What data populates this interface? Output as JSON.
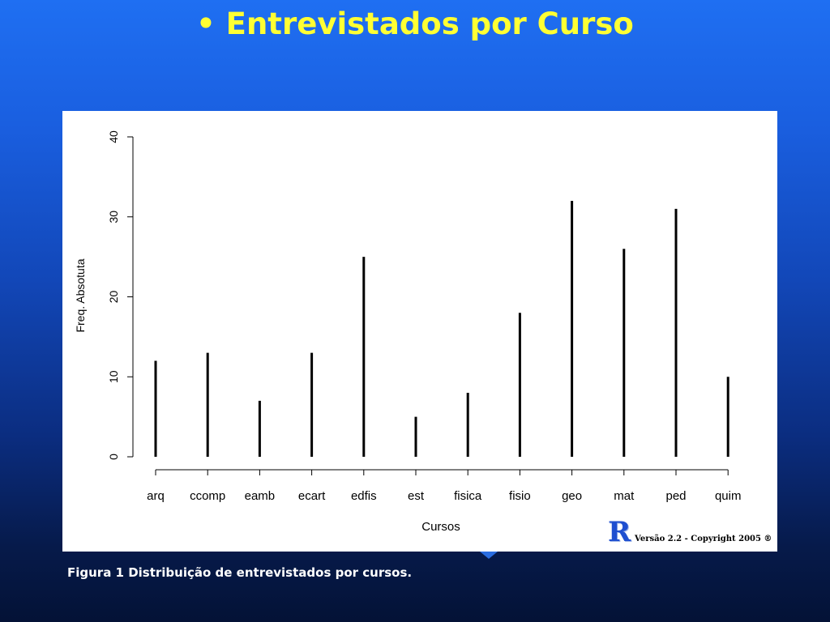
{
  "slide": {
    "title": "• Entrevistados por Curso",
    "caption": "Figura 1 Distribuição de entrevistados por cursos."
  },
  "badge": {
    "logo": "R",
    "note": "Versão 2.2 - Copyright 2005 ®"
  },
  "colors": {
    "title": "#ffff33",
    "background_top": "#1f6ff2",
    "background_bottom": "#041236",
    "bars": "#000000"
  },
  "chart_data": {
    "type": "bar",
    "title": "",
    "xlabel": "Cursos",
    "ylabel": "Freq. Absotuta",
    "categories": [
      "arq",
      "ccomp",
      "eamb",
      "ecart",
      "edfis",
      "est",
      "fisica",
      "fisio",
      "geo",
      "mat",
      "ped",
      "quim"
    ],
    "values": [
      12,
      13,
      7,
      13,
      25,
      5,
      8,
      18,
      32,
      26,
      31,
      10
    ],
    "ylim": [
      0,
      40
    ],
    "yticks": [
      0,
      10,
      20,
      30,
      40
    ],
    "grid": false,
    "legend": "none"
  }
}
